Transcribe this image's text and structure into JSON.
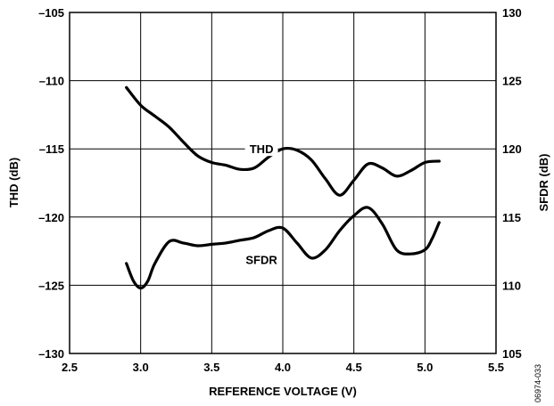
{
  "chart_data": {
    "type": "line",
    "xlabel": "REFERENCE VOLTAGE (V)",
    "ylabel": "THD (dB)",
    "y2label": "SFDR (dB)",
    "xlim": [
      2.5,
      5.5
    ],
    "ylim": [
      -130,
      -105
    ],
    "y2lim": [
      105,
      130
    ],
    "grid": true,
    "x_ticks": [
      "2.5",
      "3.0",
      "3.5",
      "4.0",
      "4.5",
      "5.0",
      "5.5"
    ],
    "y_ticks": [
      "–130",
      "–125",
      "–120",
      "–115",
      "–110",
      "–105"
    ],
    "y2_ticks": [
      "105",
      "110",
      "115",
      "120",
      "125",
      "130"
    ],
    "series": [
      {
        "name": "THD",
        "axis": "left",
        "label_at": [
          3.85,
          -115.0
        ],
        "x": [
          2.9,
          3.0,
          3.1,
          3.2,
          3.3,
          3.4,
          3.5,
          3.6,
          3.7,
          3.8,
          3.9,
          4.0,
          4.1,
          4.2,
          4.3,
          4.4,
          4.5,
          4.6,
          4.7,
          4.8,
          4.9,
          5.0,
          5.1
        ],
        "y": [
          -110.5,
          -111.8,
          -112.6,
          -113.4,
          -114.5,
          -115.5,
          -116.0,
          -116.2,
          -116.5,
          -116.4,
          -115.6,
          -115.0,
          -115.1,
          -115.8,
          -117.2,
          -118.4,
          -117.3,
          -116.1,
          -116.4,
          -117.0,
          -116.6,
          -116.0,
          -115.9
        ]
      },
      {
        "name": "SFDR",
        "axis": "right",
        "label_at": [
          3.85,
          111.9
        ],
        "x": [
          2.9,
          2.95,
          3.0,
          3.05,
          3.1,
          3.2,
          3.3,
          3.4,
          3.5,
          3.6,
          3.7,
          3.8,
          3.9,
          4.0,
          4.1,
          4.2,
          4.3,
          4.4,
          4.5,
          4.6,
          4.7,
          4.8,
          4.9,
          5.0,
          5.05,
          5.1
        ],
        "y": [
          111.6,
          110.3,
          109.8,
          110.3,
          111.6,
          113.2,
          113.1,
          112.9,
          113.0,
          113.1,
          113.3,
          113.5,
          114.0,
          114.2,
          113.1,
          112.0,
          112.6,
          114.0,
          115.1,
          115.7,
          114.5,
          112.6,
          112.3,
          112.6,
          113.4,
          114.6
        ]
      }
    ]
  },
  "figure_code": "06974-033"
}
